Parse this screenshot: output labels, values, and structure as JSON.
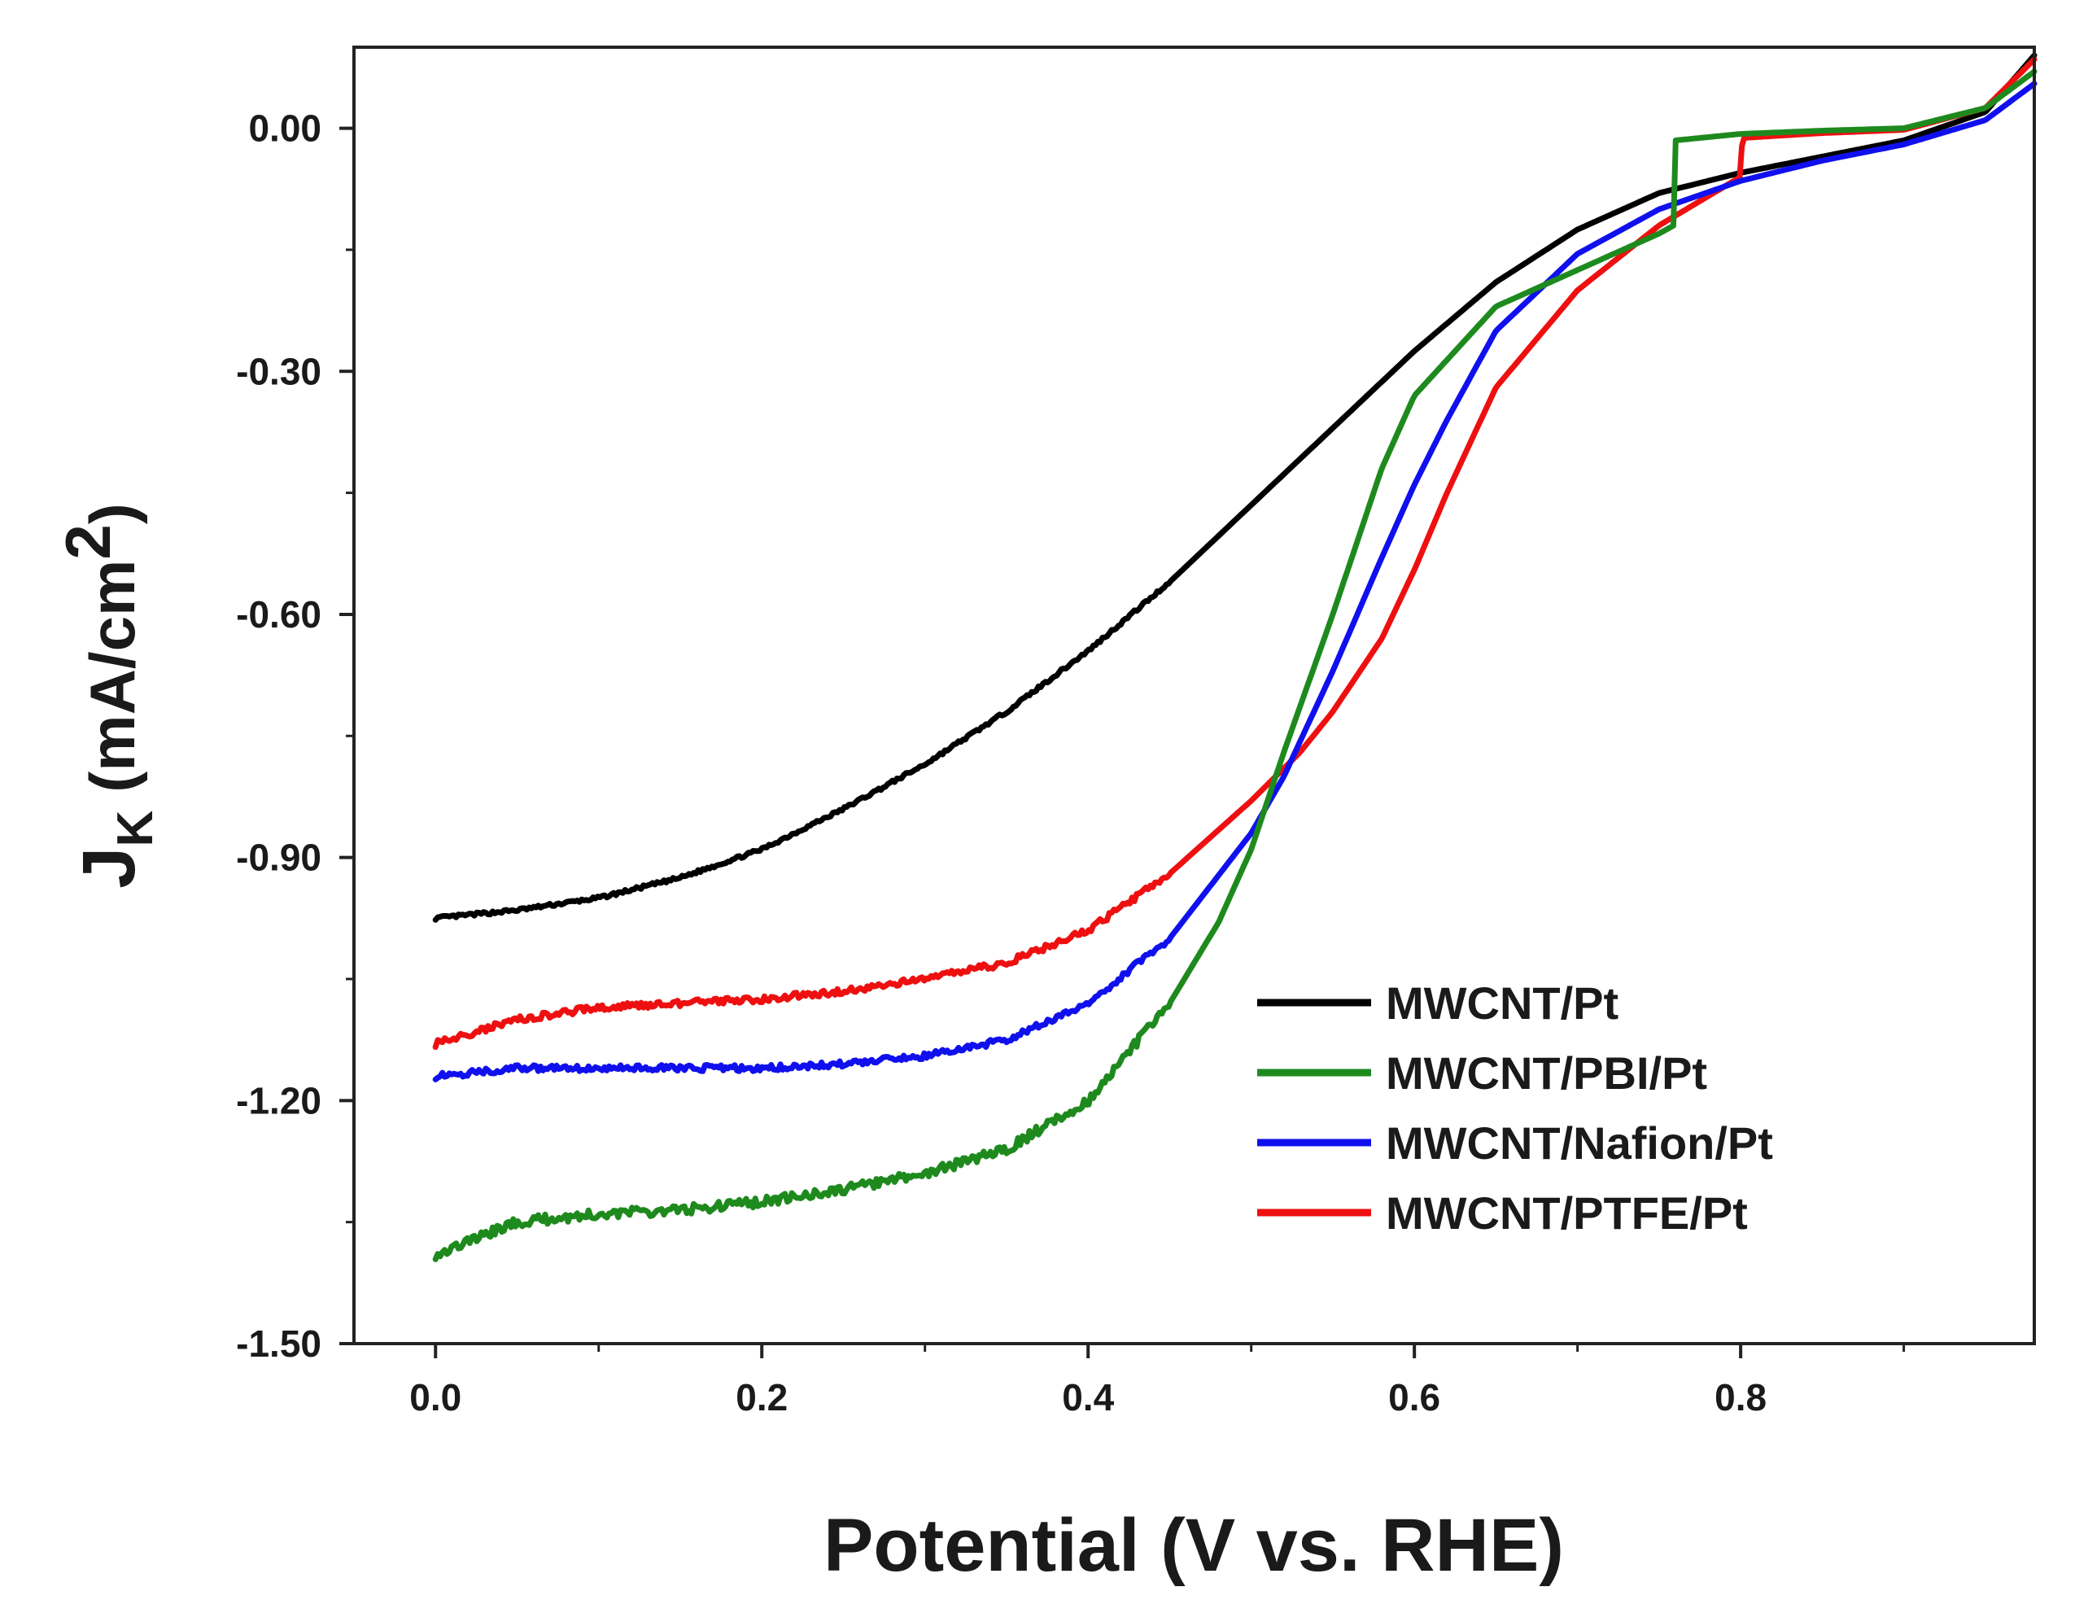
{
  "chart_data": {
    "type": "line",
    "title": "",
    "xlabel": "Potential (V vs. RHE)",
    "ylabel": {
      "main": "J",
      "subscript": "K",
      "unit": "(mA/cm",
      "superscript": "2",
      "close": ")"
    },
    "xlim": [
      -0.05,
      0.98
    ],
    "ylim": [
      -1.5,
      0.1
    ],
    "x_ticks": [
      0.0,
      0.2,
      0.4,
      0.6,
      0.8
    ],
    "x_tick_labels": [
      "0.0",
      "0.2",
      "0.4",
      "0.6",
      "0.8"
    ],
    "y_ticks": [
      0.0,
      -0.3,
      -0.6,
      -0.9,
      -1.2,
      -1.5
    ],
    "y_tick_labels": [
      "0.00",
      "-0.30",
      "-0.60",
      "-0.90",
      "-1.20",
      "-1.50"
    ],
    "legend_position": "lower-right",
    "series": [
      {
        "name": "MWCNT/Pt",
        "color": "#000000",
        "noise": 0.002,
        "x": [
          0.0,
          0.05,
          0.1,
          0.15,
          0.2,
          0.25,
          0.3,
          0.35,
          0.4,
          0.45,
          0.5,
          0.55,
          0.6,
          0.65,
          0.7,
          0.75,
          0.8,
          0.85,
          0.9,
          0.95,
          0.98
        ],
        "y": [
          -0.975,
          -0.965,
          -0.95,
          -0.925,
          -0.89,
          -0.84,
          -0.785,
          -0.72,
          -0.645,
          -0.56,
          -0.465,
          -0.37,
          -0.275,
          -0.19,
          -0.125,
          -0.08,
          -0.055,
          -0.035,
          -0.015,
          0.02,
          0.09
        ]
      },
      {
        "name": "MWCNT/PBI/Pt",
        "color": "#1e8a1e",
        "noise": 0.006,
        "x": [
          0.0,
          0.05,
          0.1,
          0.15,
          0.2,
          0.25,
          0.3,
          0.35,
          0.4,
          0.45,
          0.48,
          0.5,
          0.52,
          0.55,
          0.58,
          0.6,
          0.65,
          0.7,
          0.75,
          0.759,
          0.76,
          0.8,
          0.85,
          0.9,
          0.95,
          0.98
        ],
        "y": [
          -1.39,
          -1.35,
          -1.34,
          -1.335,
          -1.325,
          -1.31,
          -1.29,
          -1.26,
          -1.2,
          -1.08,
          -0.98,
          -0.89,
          -0.77,
          -0.6,
          -0.42,
          -0.33,
          -0.22,
          -0.175,
          -0.13,
          -0.12,
          -0.015,
          -0.007,
          -0.003,
          0.0,
          0.025,
          0.07
        ]
      },
      {
        "name": "MWCNT/Nafion/Pt",
        "color": "#1010ee",
        "noise": 0.004,
        "x": [
          0.0,
          0.05,
          0.1,
          0.15,
          0.2,
          0.25,
          0.3,
          0.35,
          0.4,
          0.45,
          0.5,
          0.52,
          0.55,
          0.58,
          0.6,
          0.62,
          0.65,
          0.7,
          0.75,
          0.8,
          0.85,
          0.9,
          0.95,
          0.98
        ],
        "y": [
          -1.17,
          -1.16,
          -1.16,
          -1.16,
          -1.16,
          -1.155,
          -1.145,
          -1.125,
          -1.08,
          -1.0,
          -0.87,
          -0.8,
          -0.67,
          -0.53,
          -0.44,
          -0.36,
          -0.25,
          -0.155,
          -0.1,
          -0.065,
          -0.04,
          -0.02,
          0.01,
          0.055
        ]
      },
      {
        "name": "MWCNT/PTFE/Pt",
        "color": "#ee1010",
        "noise": 0.004,
        "x": [
          0.0,
          0.05,
          0.1,
          0.15,
          0.2,
          0.25,
          0.3,
          0.35,
          0.4,
          0.45,
          0.5,
          0.53,
          0.55,
          0.58,
          0.6,
          0.62,
          0.65,
          0.7,
          0.75,
          0.8,
          0.801,
          0.85,
          0.9,
          0.95,
          0.98
        ],
        "y": [
          -1.13,
          -1.1,
          -1.085,
          -1.08,
          -1.075,
          -1.065,
          -1.05,
          -1.03,
          -0.99,
          -0.92,
          -0.83,
          -0.77,
          -0.72,
          -0.63,
          -0.545,
          -0.45,
          -0.32,
          -0.2,
          -0.12,
          -0.06,
          -0.012,
          -0.006,
          -0.002,
          0.025,
          0.085
        ]
      }
    ]
  }
}
